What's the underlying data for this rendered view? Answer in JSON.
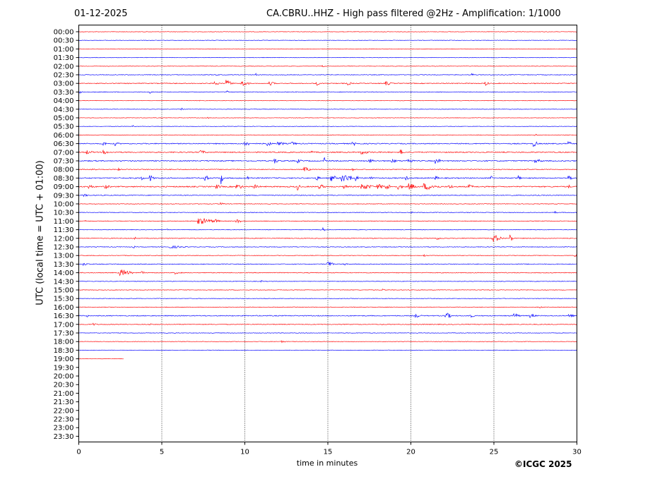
{
  "header": {
    "date": "01-12-2025",
    "title": "CA.CBRU..HHZ - High pass filtered @2Hz - Amplification: 1/1000"
  },
  "footer": {
    "credit": "©ICGC 2025"
  },
  "chart_data": {
    "type": "line",
    "title": "CA.CBRU..HHZ - High pass filtered @2Hz - Amplification: 1/1000",
    "xlabel": "time in minutes",
    "ylabel": "UTC (local time = UTC + 01:00)",
    "xlim": [
      0,
      30
    ],
    "xticks": [
      0,
      5,
      10,
      15,
      20,
      25,
      30
    ],
    "yticks": [
      "00:00",
      "00:30",
      "01:00",
      "01:30",
      "02:00",
      "02:30",
      "03:00",
      "03:30",
      "04:00",
      "04:30",
      "05:00",
      "05:30",
      "06:00",
      "06:30",
      "07:00",
      "07:30",
      "08:00",
      "08:30",
      "09:00",
      "09:30",
      "10:00",
      "10:30",
      "11:00",
      "11:30",
      "12:00",
      "12:30",
      "13:00",
      "13:30",
      "14:00",
      "14:30",
      "15:00",
      "15:30",
      "16:00",
      "16:30",
      "17:00",
      "17:30",
      "18:00",
      "18:30",
      "19:00",
      "19:30",
      "20:00",
      "20:30",
      "21:00",
      "21:30",
      "22:00",
      "22:30",
      "23:00",
      "23:30"
    ],
    "grid": "vertical dotted at each 5 minutes",
    "trace_colors": [
      "#ff0000",
      "#0000ff"
    ],
    "last_trace_end_minutes": 2.7,
    "traces": [
      {
        "time": "00:00",
        "noise": 0.6,
        "bursts": []
      },
      {
        "time": "00:30",
        "noise": 0.6,
        "bursts": []
      },
      {
        "time": "01:00",
        "noise": 0.6,
        "bursts": []
      },
      {
        "time": "01:30",
        "noise": 0.6,
        "bursts": []
      },
      {
        "time": "02:00",
        "noise": 0.6,
        "bursts": [
          [
            14.7,
            1.5,
            0.1
          ]
        ]
      },
      {
        "time": "02:30",
        "noise": 0.8,
        "bursts": [
          [
            8.3,
            2,
            0.1
          ],
          [
            10.7,
            2,
            0.1
          ],
          [
            23.7,
            2,
            0.1
          ]
        ]
      },
      {
        "time": "03:00",
        "noise": 1.0,
        "bursts": [
          [
            8.2,
            4,
            0.2
          ],
          [
            8.9,
            5,
            0.3
          ],
          [
            9.8,
            4,
            0.4
          ],
          [
            11.5,
            3,
            0.3
          ],
          [
            14.3,
            3,
            0.2
          ],
          [
            16.2,
            3,
            0.2
          ],
          [
            18.5,
            3,
            0.3
          ],
          [
            24.5,
            3,
            0.2
          ]
        ]
      },
      {
        "time": "03:30",
        "noise": 0.8,
        "bursts": [
          [
            0.1,
            2,
            0.1
          ],
          [
            4.3,
            2,
            0.1
          ],
          [
            8.9,
            3,
            0.1
          ]
        ]
      },
      {
        "time": "04:00",
        "noise": 0.6,
        "bursts": [
          [
            7.3,
            1.5,
            0.1
          ]
        ]
      },
      {
        "time": "04:30",
        "noise": 0.6,
        "bursts": [
          [
            6.2,
            1.5,
            0.1
          ]
        ]
      },
      {
        "time": "05:00",
        "noise": 0.6,
        "bursts": [
          [
            7.8,
            1.5,
            0.1
          ]
        ]
      },
      {
        "time": "05:30",
        "noise": 0.6,
        "bursts": [
          [
            3.3,
            2,
            0.1
          ]
        ]
      },
      {
        "time": "06:00",
        "noise": 0.7,
        "bursts": [
          [
            27.5,
            2,
            0.1
          ]
        ]
      },
      {
        "time": "06:30",
        "noise": 1.2,
        "bursts": [
          [
            1.5,
            3,
            0.2
          ],
          [
            2.2,
            3,
            0.2
          ],
          [
            10.0,
            4,
            0.3
          ],
          [
            11.3,
            4,
            0.3
          ],
          [
            12.0,
            3,
            0.4
          ],
          [
            12.8,
            3,
            0.3
          ],
          [
            16.5,
            3,
            0.3
          ],
          [
            27.4,
            5,
            0.2
          ],
          [
            29.5,
            3,
            0.2
          ]
        ]
      },
      {
        "time": "07:00",
        "noise": 1.3,
        "bursts": [
          [
            0.5,
            3,
            0.3
          ],
          [
            1.5,
            3,
            0.3
          ],
          [
            7.3,
            3,
            0.4
          ],
          [
            14.0,
            4,
            0.1
          ],
          [
            17.0,
            3,
            0.5
          ],
          [
            19.4,
            4,
            0.2
          ]
        ]
      },
      {
        "time": "07:30",
        "noise": 1.3,
        "bursts": [
          [
            11.8,
            4,
            0.2
          ],
          [
            13.2,
            3,
            0.2
          ],
          [
            14.8,
            5,
            0.1
          ],
          [
            17.5,
            3,
            0.3
          ],
          [
            18.8,
            3,
            0.4
          ],
          [
            19.8,
            4,
            0.3
          ],
          [
            21.5,
            4,
            0.3
          ],
          [
            27.5,
            3,
            0.4
          ]
        ]
      },
      {
        "time": "08:00",
        "noise": 1.0,
        "bursts": [
          [
            0.8,
            2,
            0.3
          ],
          [
            2.4,
            2,
            0.1
          ],
          [
            13.6,
            4,
            0.3
          ],
          [
            16.5,
            2,
            0.1
          ]
        ]
      },
      {
        "time": "08:30",
        "noise": 1.3,
        "bursts": [
          [
            3.8,
            3,
            0.2
          ],
          [
            4.3,
            5,
            0.2
          ],
          [
            7.6,
            5,
            0.2
          ],
          [
            8.6,
            9,
            0.08
          ],
          [
            10.2,
            3,
            0.2
          ],
          [
            14.3,
            4,
            0.2
          ],
          [
            15.2,
            5,
            0.3
          ],
          [
            15.8,
            6,
            0.8
          ],
          [
            16.7,
            4,
            0.2
          ],
          [
            17.5,
            4,
            0.2
          ],
          [
            19.7,
            3,
            0.2
          ],
          [
            21.5,
            3,
            0.2
          ],
          [
            24.8,
            3,
            0.2
          ],
          [
            26.5,
            4,
            0.1
          ],
          [
            29.5,
            3,
            0.3
          ]
        ]
      },
      {
        "time": "09:00",
        "noise": 1.4,
        "bursts": [
          [
            0.6,
            3,
            0.3
          ],
          [
            1.6,
            3,
            0.3
          ],
          [
            8.3,
            3,
            0.3
          ],
          [
            9.5,
            4,
            0.4
          ],
          [
            10.6,
            3,
            0.3
          ],
          [
            13.2,
            6,
            0.1
          ],
          [
            14.5,
            4,
            0.3
          ],
          [
            16.0,
            3,
            0.3
          ],
          [
            17.0,
            5,
            0.6
          ],
          [
            18.0,
            4,
            0.4
          ],
          [
            18.5,
            5,
            0.3
          ],
          [
            19.2,
            4,
            0.3
          ],
          [
            19.9,
            5,
            0.4
          ],
          [
            20.8,
            5,
            0.8
          ],
          [
            22.3,
            3,
            0.3
          ],
          [
            23.5,
            3,
            0.3
          ],
          [
            29.5,
            3,
            0.1
          ]
        ]
      },
      {
        "time": "09:30",
        "noise": 1.0,
        "bursts": [
          [
            0.3,
            2,
            0.3
          ]
        ]
      },
      {
        "time": "10:00",
        "noise": 0.7,
        "bursts": [
          [
            8.5,
            2,
            0.3
          ]
        ]
      },
      {
        "time": "10:30",
        "noise": 0.8,
        "bursts": [
          [
            20.0,
            2,
            0.1
          ],
          [
            28.7,
            2,
            0.1
          ]
        ]
      },
      {
        "time": "11:00",
        "noise": 0.8,
        "bursts": [
          [
            0.4,
            2,
            0.1
          ],
          [
            7.2,
            5,
            0.8
          ],
          [
            8.2,
            3,
            0.3
          ],
          [
            9.5,
            3,
            0.3
          ]
        ]
      },
      {
        "time": "11:30",
        "noise": 0.7,
        "bursts": [
          [
            5.3,
            1.5,
            0.1
          ],
          [
            14.6,
            4,
            0.2
          ]
        ]
      },
      {
        "time": "12:00",
        "noise": 0.9,
        "bursts": [
          [
            3.4,
            2,
            0.1
          ],
          [
            21.5,
            2,
            0.4
          ],
          [
            24.9,
            6,
            0.5
          ],
          [
            26.0,
            6,
            0.15
          ]
        ]
      },
      {
        "time": "12:30",
        "noise": 0.8,
        "bursts": [
          [
            3.3,
            2,
            0.1
          ],
          [
            5.5,
            2,
            0.9
          ]
        ]
      },
      {
        "time": "13:00",
        "noise": 0.7,
        "bursts": [
          [
            20.8,
            2,
            0.1
          ],
          [
            29.9,
            2,
            0.1
          ]
        ]
      },
      {
        "time": "13:30",
        "noise": 0.9,
        "bursts": [
          [
            0.3,
            2,
            0.3
          ],
          [
            15.0,
            4,
            0.3
          ],
          [
            16.0,
            2,
            0.2
          ]
        ]
      },
      {
        "time": "14:00",
        "noise": 0.9,
        "bursts": [
          [
            2.5,
            5,
            0.6
          ],
          [
            3.8,
            2,
            0.2
          ],
          [
            5.8,
            2,
            0.4
          ]
        ]
      },
      {
        "time": "14:30",
        "noise": 0.7,
        "bursts": [
          [
            11.0,
            1.5,
            0.1
          ]
        ]
      },
      {
        "time": "15:00",
        "noise": 0.7,
        "bursts": [
          [
            18.3,
            2,
            0.1
          ]
        ]
      },
      {
        "time": "15:30",
        "noise": 0.7,
        "bursts": []
      },
      {
        "time": "16:00",
        "noise": 0.7,
        "bursts": [
          [
            27.8,
            2,
            0.1
          ]
        ]
      },
      {
        "time": "16:30",
        "noise": 1.1,
        "bursts": [
          [
            0.5,
            2,
            0.1
          ],
          [
            20.3,
            3,
            0.3
          ],
          [
            22.1,
            5,
            0.3
          ],
          [
            23.5,
            3,
            0.3
          ],
          [
            26.2,
            4,
            0.3
          ],
          [
            27.2,
            3,
            0.3
          ],
          [
            29.5,
            3,
            0.3
          ]
        ]
      },
      {
        "time": "17:00",
        "noise": 0.9,
        "bursts": [
          [
            0.3,
            2,
            0.1
          ],
          [
            0.9,
            2,
            0.2
          ],
          [
            4.3,
            2,
            0.1
          ]
        ]
      },
      {
        "time": "17:30",
        "noise": 0.7,
        "bursts": []
      },
      {
        "time": "18:00",
        "noise": 0.6,
        "bursts": [
          [
            12.2,
            1.5,
            0.3
          ]
        ]
      },
      {
        "time": "18:30",
        "noise": 0.5,
        "bursts": []
      },
      {
        "time": "19:00",
        "noise": 0.4,
        "bursts": []
      }
    ]
  }
}
